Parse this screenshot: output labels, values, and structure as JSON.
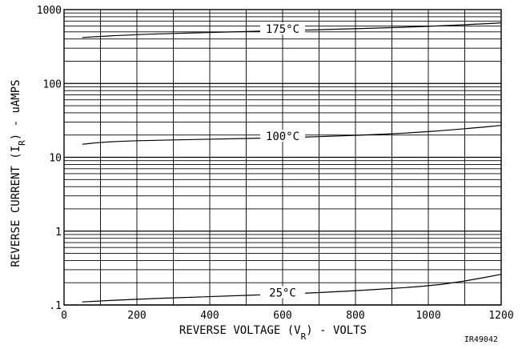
{
  "chart_data": {
    "type": "line",
    "title": "",
    "xlabel": {
      "pre": "REVERSE VOLTAGE (V",
      "sub": "R",
      "post": ") - VOLTS"
    },
    "ylabel": {
      "pre": "REVERSE CURRENT (I",
      "sub": "R",
      "post": ") - uAMPS"
    },
    "xlim": [
      0,
      1200
    ],
    "ylim": [
      0.1,
      1000
    ],
    "yscale": "log",
    "grid": true,
    "x_ticks": [
      0,
      200,
      400,
      600,
      800,
      1000,
      1200
    ],
    "x_tick_labels": [
      "0",
      "200",
      "400",
      "600",
      "800",
      "1000",
      "1200"
    ],
    "y_ticks": [
      0.1,
      1,
      10,
      100,
      1000
    ],
    "y_tick_labels": [
      ".1",
      "1",
      "10",
      "100",
      "1000"
    ],
    "series": [
      {
        "name": "175°C",
        "label_at_x": 600,
        "x": [
          50,
          200,
          400,
          600,
          800,
          1000,
          1200
        ],
        "y": [
          420,
          460,
          490,
          520,
          550,
          590,
          660
        ]
      },
      {
        "name": "100°C",
        "label_at_x": 600,
        "x": [
          50,
          100,
          200,
          400,
          600,
          800,
          1000,
          1200
        ],
        "y": [
          15,
          16,
          16.8,
          17.6,
          18.4,
          19.7,
          22,
          27
        ]
      },
      {
        "name": "25°C",
        "label_at_x": 600,
        "x": [
          50,
          200,
          400,
          600,
          800,
          1000,
          1100,
          1200
        ],
        "y": [
          0.11,
          0.12,
          0.13,
          0.14,
          0.155,
          0.18,
          0.21,
          0.26
        ]
      }
    ],
    "figure_id": "IR49042"
  }
}
